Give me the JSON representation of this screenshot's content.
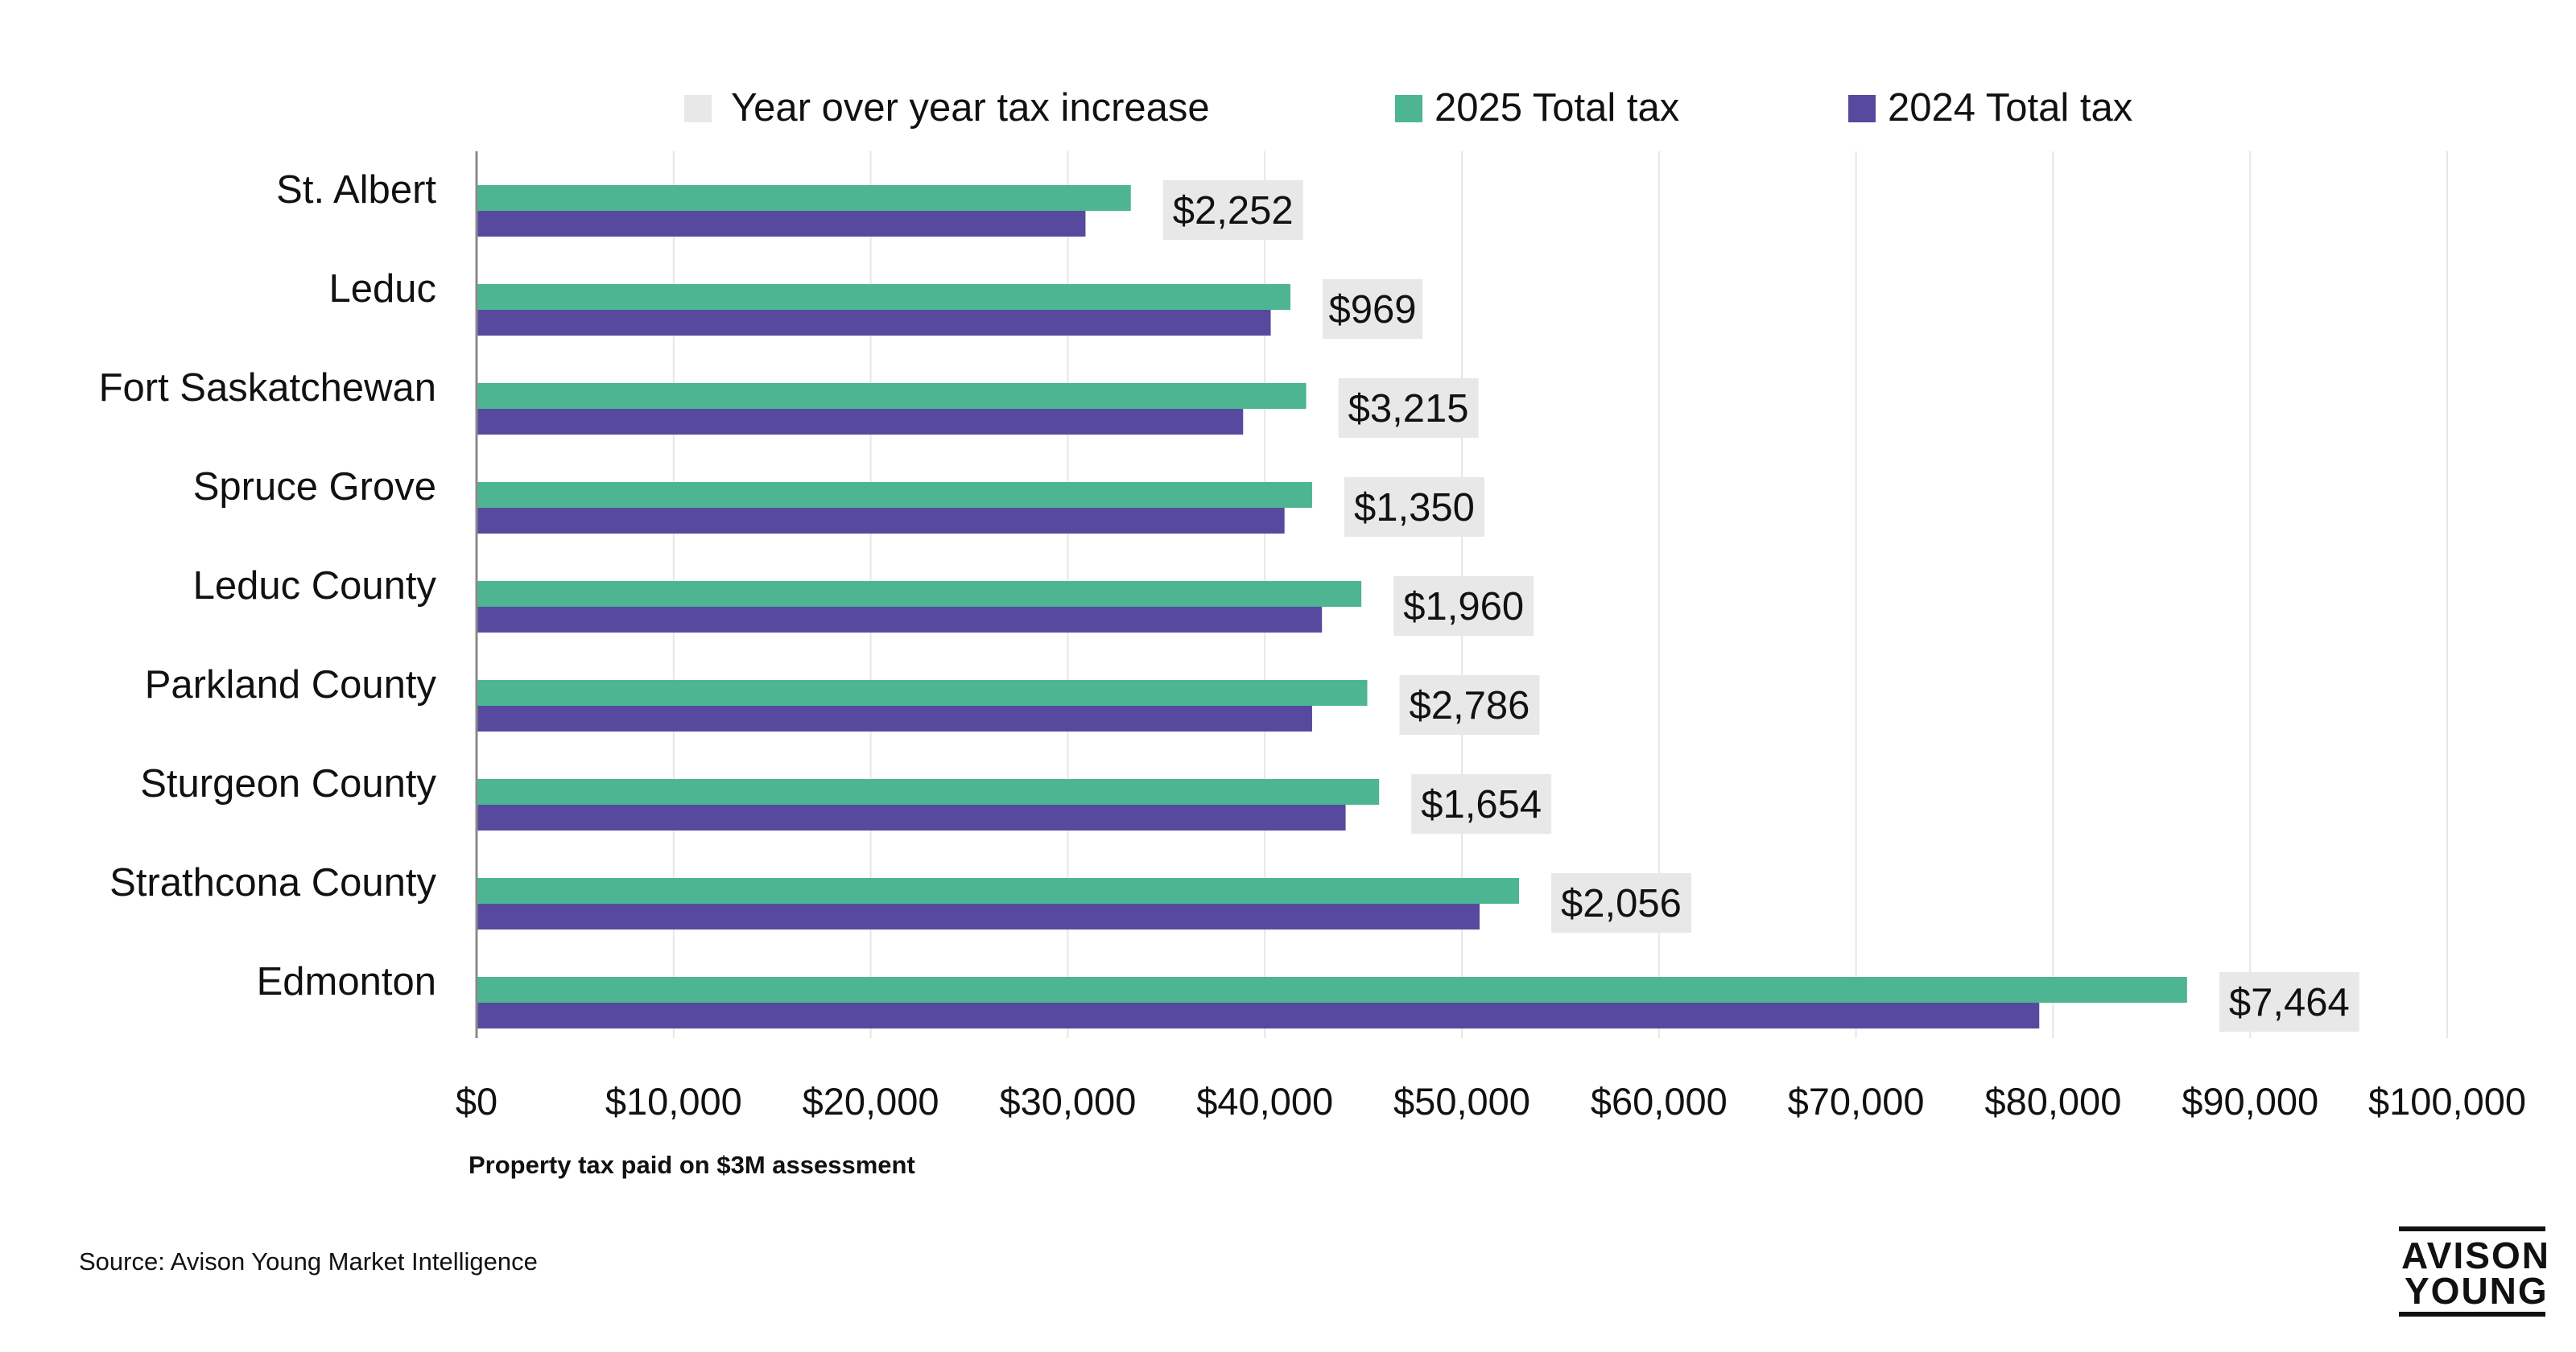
{
  "chart_data": {
    "type": "bar",
    "orientation": "horizontal",
    "title": "",
    "xlabel": "Property tax paid on $3M assessment",
    "ylabel": "",
    "xlim": [
      0,
      100000
    ],
    "x_ticks": [
      0,
      10000,
      20000,
      30000,
      40000,
      50000,
      60000,
      70000,
      80000,
      90000,
      100000
    ],
    "x_tick_labels": [
      "$0",
      "$10,000",
      "$20,000",
      "$30,000",
      "$40,000",
      "$50,000",
      "$60,000",
      "$70,000",
      "$80,000",
      "$90,000",
      "$100,000"
    ],
    "grid": true,
    "legend_position": "top",
    "categories": [
      "St. Albert",
      "Leduc",
      "Fort Saskatchewan",
      "Spruce Grove",
      "Leduc County",
      "Parkland County",
      "Sturgeon County",
      "Strathcona County",
      "Edmonton"
    ],
    "series": [
      {
        "name": "2025 Total tax",
        "color": "#4db592",
        "values": [
          33200,
          41300,
          42100,
          42400,
          44900,
          45200,
          45800,
          52900,
          86800
        ]
      },
      {
        "name": "2024 Total tax",
        "color": "#574a9e",
        "values": [
          30900,
          40300,
          38900,
          41000,
          42900,
          42400,
          44100,
          50900,
          79300
        ]
      }
    ],
    "yoy_increase": {
      "name": "Year over year tax increase",
      "color": "#e8e8e8",
      "labels": [
        "$2,252",
        "$969",
        "$3,215",
        "$1,350",
        "$1,960",
        "$2,786",
        "$1,654",
        "$2,056",
        "$7,464"
      ]
    }
  },
  "footer": {
    "source": "Source: Avison Young Market Intelligence",
    "logo_line1": "AVISON",
    "logo_line2": "YOUNG"
  }
}
